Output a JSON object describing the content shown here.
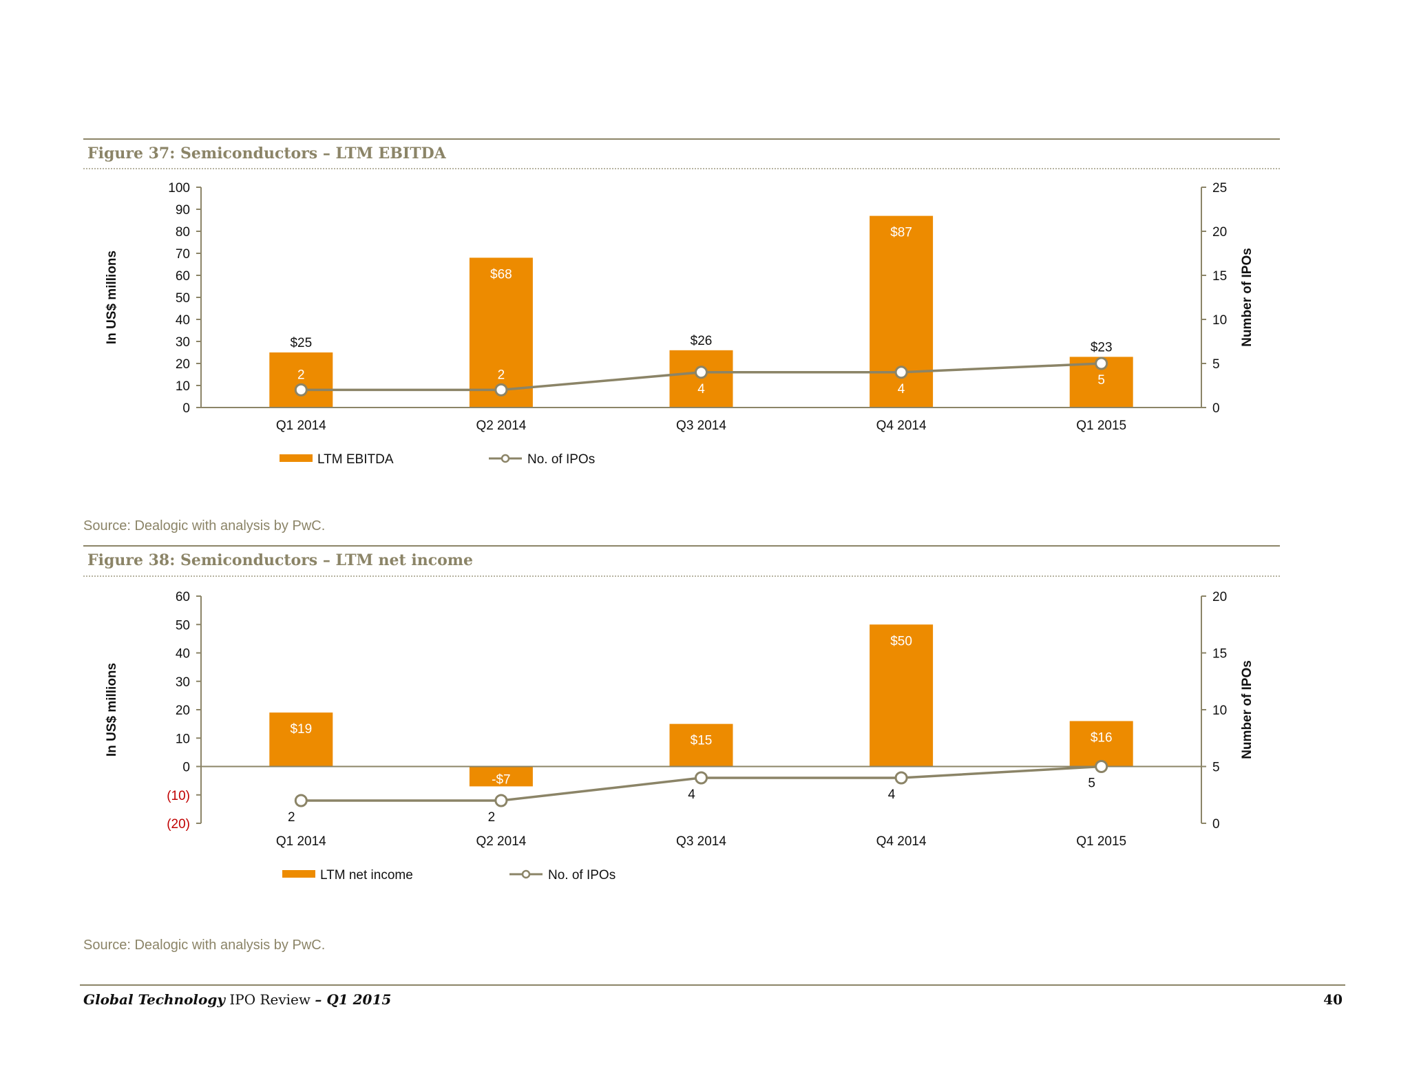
{
  "figures": [
    {
      "title": "Figure 37: Semiconductors – LTM EBITDA",
      "source": "Source: Dealogic with analysis by PwC."
    },
    {
      "title": "Figure 38: Semiconductors – LTM net income",
      "source": "Source: Dealogic with analysis by PwC."
    }
  ],
  "footer": {
    "title_italic": "Global Technology",
    "title_mid": " IPO Review ",
    "title_end": "– Q1 2015",
    "page_number": "40"
  },
  "colors": {
    "bar": "#ed8b00",
    "line": "#8b8467",
    "negative_tick": "#c00000"
  },
  "chart_data": [
    {
      "type": "bar",
      "categories": [
        "Q1 2014",
        "Q2 2014",
        "Q3 2014",
        "Q4 2014",
        "Q1 2015"
      ],
      "series": [
        {
          "name": "LTM EBITDA",
          "type": "bar",
          "axis": "left",
          "values": [
            25,
            68,
            26,
            87,
            23
          ],
          "labels": [
            "$25",
            "$68",
            "$26",
            "$87",
            "$23"
          ]
        },
        {
          "name": "No. of IPOs",
          "type": "line",
          "axis": "right",
          "values": [
            2,
            2,
            4,
            4,
            5
          ],
          "labels": [
            "2",
            "2",
            "4",
            "4",
            "5"
          ]
        }
      ],
      "ylabel": "In US$ millions",
      "ylabel_right": "Number of IPOs",
      "ylim": [
        0,
        100
      ],
      "yticks": [
        0,
        10,
        20,
        30,
        40,
        50,
        60,
        70,
        80,
        90,
        100
      ],
      "ytick_labels": [
        "0",
        "10",
        "20",
        "30",
        "40",
        "50",
        "60",
        "70",
        "80",
        "90",
        "100"
      ],
      "ylim_right": [
        0,
        25
      ],
      "yticks_right": [
        0,
        5,
        10,
        15,
        20,
        25
      ],
      "legend": "bottom-left",
      "grid": false
    },
    {
      "type": "bar",
      "categories": [
        "Q1 2014",
        "Q2 2014",
        "Q3 2014",
        "Q4 2014",
        "Q1 2015"
      ],
      "series": [
        {
          "name": "LTM net income",
          "type": "bar",
          "axis": "left",
          "values": [
            19,
            -7,
            15,
            50,
            16
          ],
          "labels": [
            "$19",
            "-$7",
            "$15",
            "$50",
            "$16"
          ]
        },
        {
          "name": "No. of IPOs",
          "type": "line",
          "axis": "right",
          "values": [
            2,
            2,
            4,
            4,
            5
          ],
          "labels": [
            "2",
            "2",
            "4",
            "4",
            "5"
          ]
        }
      ],
      "ylabel": "In US$ millions",
      "ylabel_right": "Number of IPOs",
      "ylim": [
        -20,
        60
      ],
      "yticks": [
        -20,
        -10,
        0,
        10,
        20,
        30,
        40,
        50,
        60
      ],
      "ytick_labels": [
        "(20)",
        "(10)",
        "0",
        "10",
        "20",
        "30",
        "40",
        "50",
        "60"
      ],
      "ylim_right": [
        0,
        20
      ],
      "yticks_right": [
        0,
        5,
        10,
        15,
        20
      ],
      "legend": "bottom-left",
      "grid": false
    }
  ]
}
